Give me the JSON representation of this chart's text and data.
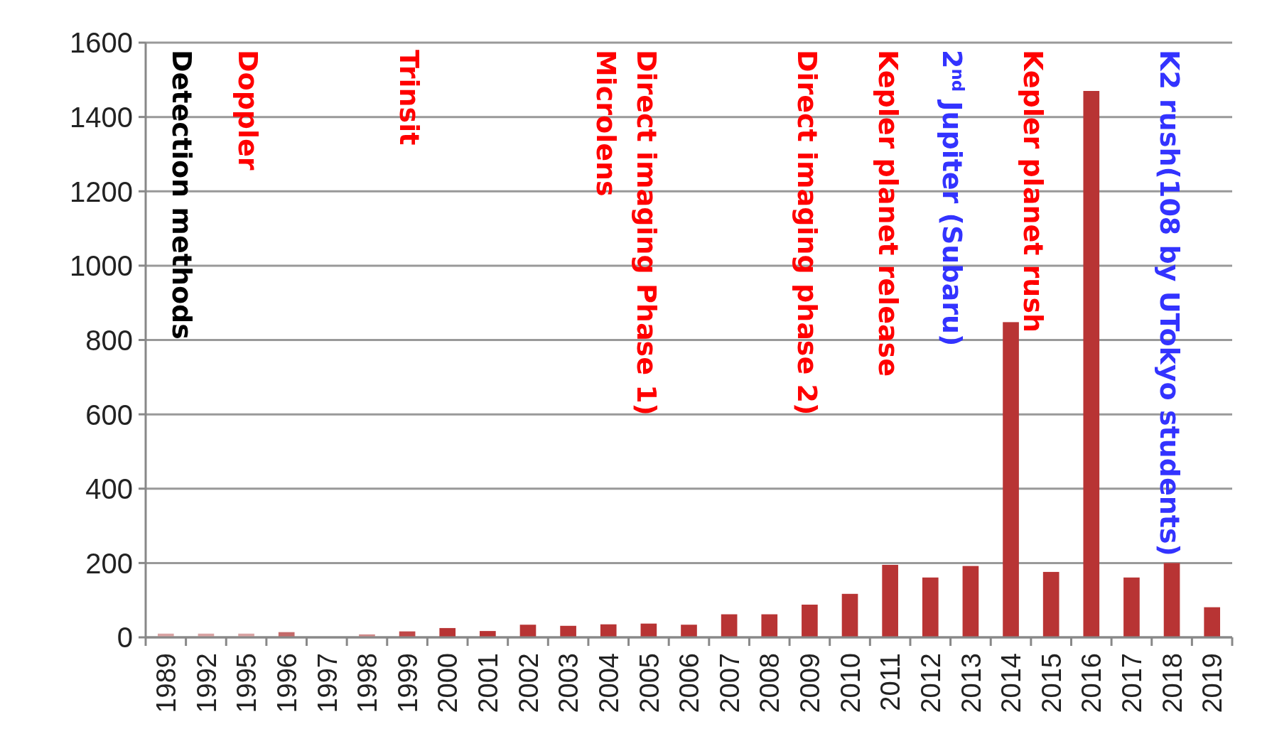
{
  "chart_data": {
    "type": "bar",
    "categories": [
      "1989",
      "1992",
      "1995",
      "1996",
      "1997",
      "1998",
      "1999",
      "2000",
      "2001",
      "2002",
      "2003",
      "2004",
      "2005",
      "2006",
      "2007",
      "2008",
      "2009",
      "2010",
      "2011",
      "2012",
      "2013",
      "2014",
      "2015",
      "2016",
      "2017",
      "2018",
      "2019"
    ],
    "values": [
      10,
      10,
      10,
      14,
      0,
      8,
      16,
      25,
      17,
      34,
      31,
      35,
      37,
      34,
      62,
      62,
      88,
      117,
      195,
      161,
      192,
      848,
      176,
      1470,
      161,
      200,
      81
    ],
    "colors": [
      "#d9a3a3",
      "#d9a3a3",
      "#d9a3a3",
      "#c46a6a",
      "#c46a6a",
      "#d08a8a",
      "#c04848",
      "#b83434",
      "#b83434",
      "#b83434",
      "#b83434",
      "#b83434",
      "#b83434",
      "#b83434",
      "#b83434",
      "#b83434",
      "#b83434",
      "#b83434",
      "#b83434",
      "#b83434",
      "#b83434",
      "#b83434",
      "#b83434",
      "#b83434",
      "#b83434",
      "#b83434",
      "#b83434"
    ],
    "ylim": [
      0,
      1600
    ],
    "yticks": [
      0,
      200,
      400,
      600,
      800,
      1000,
      1200,
      1400,
      1600
    ],
    "grid": "y",
    "annotations": [
      "Detection methods",
      "Doppler",
      "Trinsit",
      "Microlens",
      "Direct imaging Phase 1)",
      "Direct imaging phase 2)",
      "Kepler planet release",
      "2$^{nd}$ Jupiter (Subaru)",
      "Kepler planet rush",
      "K2 rush(108 by UTokyo students)"
    ]
  }
}
